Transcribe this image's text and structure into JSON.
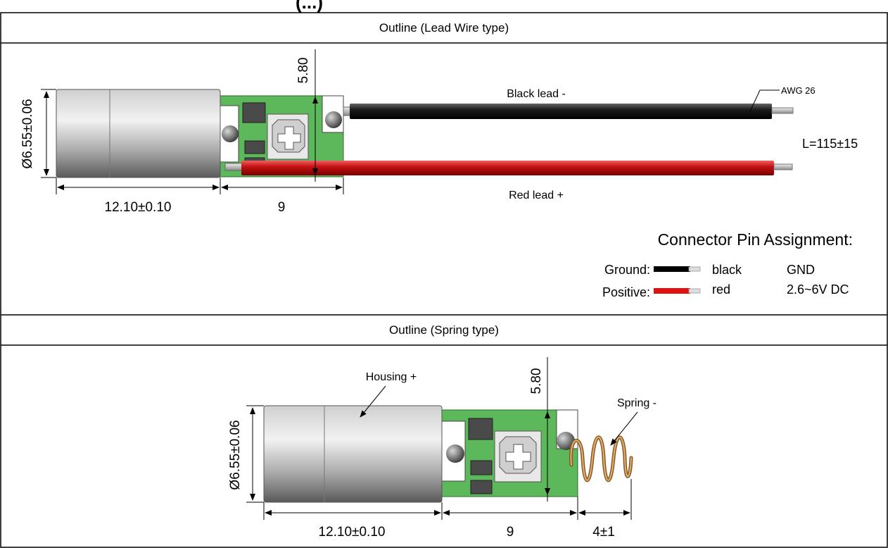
{
  "top_partial_title": "(...)",
  "lead_section": {
    "header": "Outline (Lead Wire type)",
    "dim_diameter": "Ø6.55±0.06",
    "dim_height": "5.80",
    "dim_body_length": "12.10±0.10",
    "dim_board_length": "9",
    "black_lead_label": "Black lead -",
    "red_lead_label": "Red lead +",
    "awg_label": "AWG 26",
    "length_label": "L=115±15",
    "connector_title": "Connector Pin Assignment:",
    "pins": [
      {
        "label": "Ground:",
        "color_name": "black",
        "value": "GND",
        "swatch": "#000000"
      },
      {
        "label": "Positive:",
        "color_name": "red",
        "value": "2.6~6V DC",
        "swatch": "#e0120f"
      }
    ]
  },
  "spring_section": {
    "header": "Outline (Spring type)",
    "housing_label": "Housing +",
    "spring_label": "Spring -",
    "dim_diameter": "Ø6.55±0.06",
    "dim_height": "5.80",
    "dim_body_length": "12.10±0.10",
    "dim_board_length": "9",
    "dim_spring_length": "4±1"
  },
  "colors": {
    "pcb_green": "#5cb85a",
    "black_wire": "#111111",
    "red_wire": "#c41212",
    "spring_copper": "#b87a3c"
  }
}
